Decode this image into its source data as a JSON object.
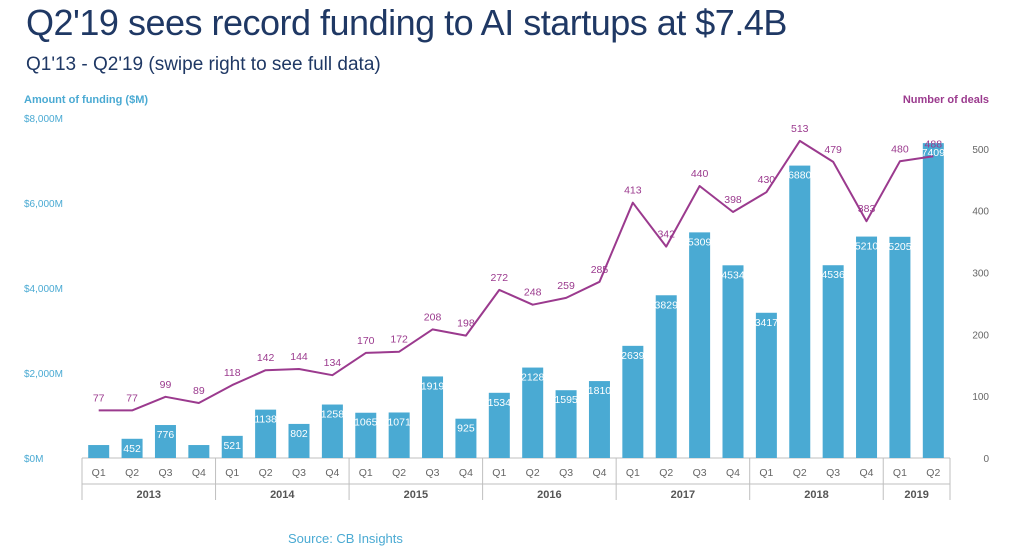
{
  "title": "Q2'19 sees record funding to AI startups at $7.4B",
  "subtitle": "Q1'13 - Q2'19 (swipe right to see full data)",
  "source": "Source: CB Insights",
  "colors": {
    "bar": "#4aaad3",
    "line": "#9b3a8e",
    "title": "#1f3864",
    "axis": "#4aaad3"
  },
  "chart_data": {
    "type": "bar",
    "y_axis_label": "Amount of funding ($M)",
    "y2_axis_label": "Number of deals",
    "ylim": [
      0,
      8000
    ],
    "y_ticks": [
      "$0M",
      "$2,000M",
      "$4,000M",
      "$6,000M",
      "$8,000M"
    ],
    "y2lim": [
      0,
      550
    ],
    "y2_ticks": [
      "0",
      "100",
      "200",
      "300",
      "400",
      "500"
    ],
    "quarters": [
      "Q1",
      "Q2",
      "Q3",
      "Q4",
      "Q1",
      "Q2",
      "Q3",
      "Q4",
      "Q1",
      "Q2",
      "Q3",
      "Q4",
      "Q1",
      "Q2",
      "Q3",
      "Q4",
      "Q1",
      "Q2",
      "Q3",
      "Q4",
      "Q1",
      "Q2",
      "Q3",
      "Q4",
      "Q1",
      "Q2"
    ],
    "years": [
      {
        "label": "2013",
        "count": 4
      },
      {
        "label": "2014",
        "count": 4
      },
      {
        "label": "2015",
        "count": 4
      },
      {
        "label": "2016",
        "count": 4
      },
      {
        "label": "2017",
        "count": 4
      },
      {
        "label": "2018",
        "count": 4
      },
      {
        "label": "2019",
        "count": 2
      }
    ],
    "funding": [
      305,
      452,
      776,
      305,
      521,
      1138,
      802,
      1258,
      1065,
      1071,
      1919,
      925,
      1534,
      2128,
      1595,
      1810,
      2639,
      3829,
      5309,
      4534,
      3417,
      6880,
      4536,
      5210,
      5205,
      7409
    ],
    "funding_labels": [
      "",
      "452",
      "776",
      "",
      "521",
      "1138",
      "802",
      "1258",
      "1065",
      "1071",
      "1919",
      "925",
      "1534",
      "2128",
      "1595",
      "1810",
      "2639",
      "3829",
      "5309",
      "4534",
      "3417",
      "6880",
      "4536",
      "5210",
      "5205",
      "7409"
    ],
    "deals": [
      77,
      77,
      99,
      89,
      118,
      142,
      144,
      134,
      170,
      172,
      208,
      198,
      272,
      248,
      259,
      285,
      413,
      342,
      440,
      398,
      430,
      513,
      479,
      383,
      480,
      488
    ]
  }
}
